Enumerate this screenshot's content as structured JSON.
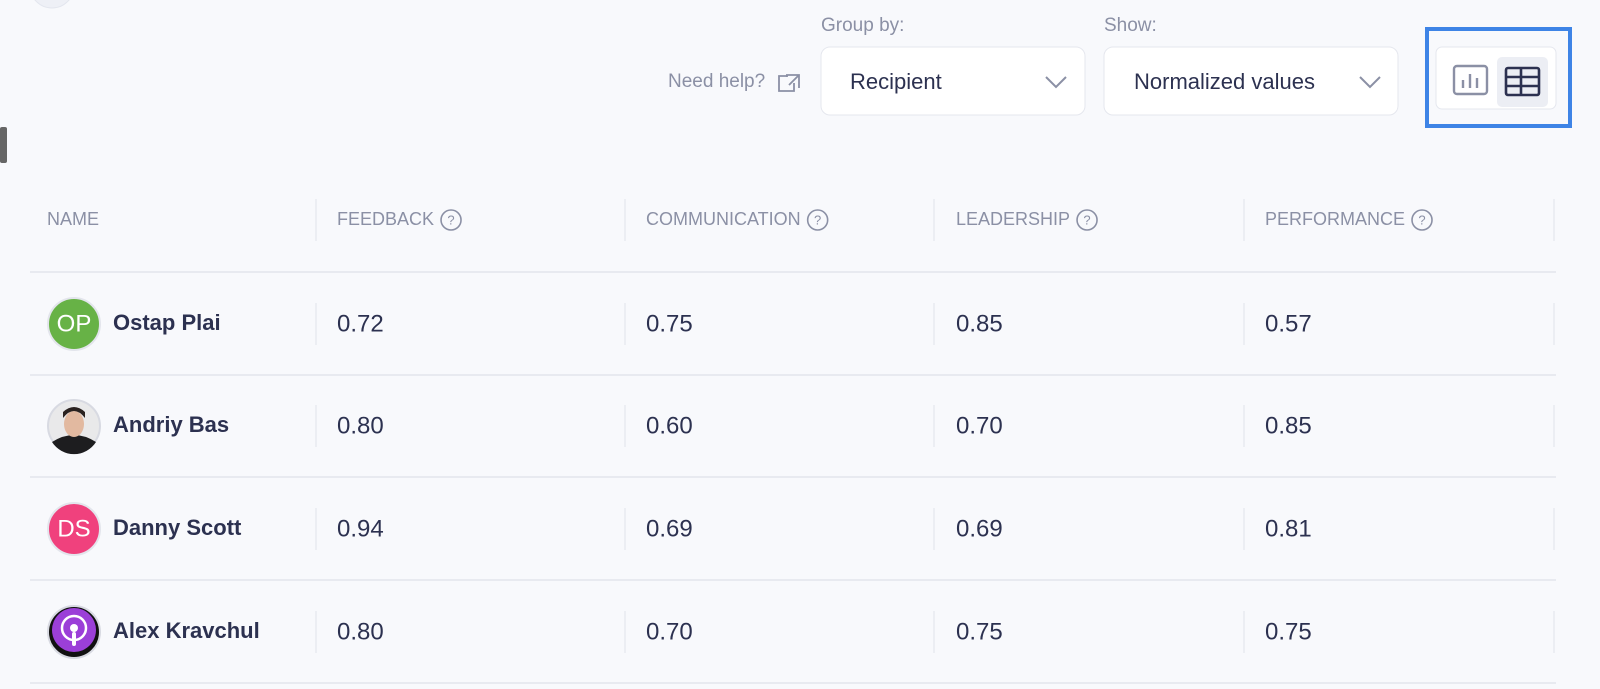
{
  "toolbar": {
    "need_help": "Need help?",
    "group_by": {
      "label": "Group by:",
      "value": "Recipient"
    },
    "show": {
      "label": "Show:",
      "value": "Normalized values"
    }
  },
  "table": {
    "headers": [
      "NAME",
      "FEEDBACK",
      "COMMUNICATION",
      "LEADERSHIP",
      "PERFORMANCE"
    ],
    "rows": [
      {
        "initials": "OP",
        "avatar_color": "#67b246",
        "name": "Ostap Plai",
        "values": [
          "0.72",
          "0.75",
          "0.85",
          "0.57"
        ]
      },
      {
        "name": "Andriy Bas",
        "values": [
          "0.80",
          "0.60",
          "0.70",
          "0.85"
        ]
      },
      {
        "initials": "DS",
        "avatar_color": "#f0417d",
        "name": "Danny Scott",
        "values": [
          "0.94",
          "0.69",
          "0.69",
          "0.81"
        ]
      },
      {
        "name": "Alex Kravchul",
        "values": [
          "0.80",
          "0.70",
          "0.75",
          "0.75"
        ]
      }
    ]
  }
}
